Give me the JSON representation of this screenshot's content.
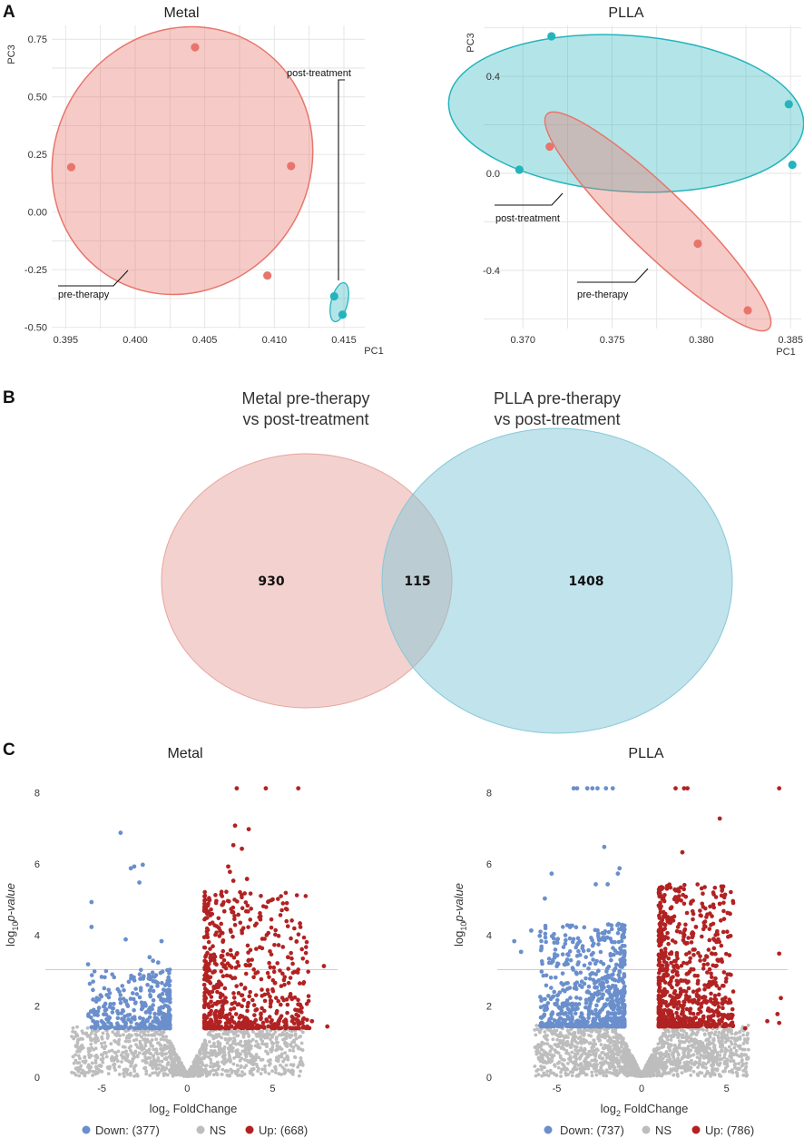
{
  "panels": {
    "A": "A",
    "B": "B",
    "C": "C"
  },
  "colors": {
    "metal_pre": "#e8756c",
    "post": "#24b4bc",
    "venn_left": "#ebb1ac",
    "venn_right": "#9ed4e0",
    "down": "#6a8fcc",
    "ns": "#bdbdbd",
    "up": "#b22222"
  },
  "chart_data": [
    {
      "id": "pca_metal",
      "type": "scatter",
      "title": "Metal",
      "xlabel": "PC1",
      "ylabel": "PC3",
      "xlim": [
        0.394,
        0.4165
      ],
      "ylim": [
        -0.505,
        0.81
      ],
      "xticks": [
        0.395,
        0.4,
        0.405,
        0.41,
        0.415
      ],
      "xtick_labels": [
        "0.395",
        "0.400",
        "0.405",
        "0.410",
        "0.415"
      ],
      "yticks": [
        0.75,
        0.5,
        0.25,
        0.0,
        -0.25,
        -0.5
      ],
      "ytick_labels": [
        "0.75",
        "0.50",
        "0.25",
        "0.00",
        "-0.25",
        "-0.50"
      ],
      "series": [
        {
          "name": "pre-therapy",
          "color_key": "metal_pre",
          "x": [
            0.3954,
            0.4043,
            0.4112,
            0.4095
          ],
          "y": [
            0.195,
            0.715,
            0.2,
            -0.275
          ]
        },
        {
          "name": "post-treatment",
          "color_key": "post",
          "x": [
            0.4143,
            0.4149
          ],
          "y": [
            -0.365,
            -0.445
          ]
        }
      ],
      "annotations": [
        "post-treatment",
        "pre-therapy"
      ]
    },
    {
      "id": "pca_plla",
      "type": "scatter",
      "title": "PLLA",
      "xlabel": "PC1",
      "ylabel": "PC3",
      "xlim": [
        0.3678,
        0.3856
      ],
      "ylim": [
        -0.64,
        0.61
      ],
      "xticks": [
        0.37,
        0.375,
        0.38,
        0.385
      ],
      "xtick_labels": [
        "0.370",
        "0.375",
        "0.380",
        "0.385"
      ],
      "yticks": [
        0.4,
        0.0,
        -0.4
      ],
      "ytick_labels": [
        "0.4",
        "0.0",
        "-0.4"
      ],
      "series": [
        {
          "name": "post-treatment",
          "color_key": "post",
          "x": [
            0.3698,
            0.3716,
            0.3849,
            0.3851
          ],
          "y": [
            0.015,
            0.565,
            0.285,
            0.035
          ]
        },
        {
          "name": "pre-therapy",
          "color_key": "metal_pre",
          "x": [
            0.3715,
            0.3798,
            0.3826
          ],
          "y": [
            0.11,
            -0.29,
            -0.565
          ]
        }
      ],
      "annotations": [
        "post-treatment",
        "pre-therapy"
      ]
    },
    {
      "id": "venn",
      "type": "venn",
      "sets": [
        {
          "label_line1": "Metal pre-therapy",
          "label_line2": "vs post-treatment",
          "only": 930
        },
        {
          "label_line1": "PLLA pre-therapy",
          "label_line2": "vs post-treatment",
          "only": 1408
        }
      ],
      "intersection": 115
    },
    {
      "id": "volcano_metal",
      "type": "scatter",
      "title": "Metal",
      "xlabel_main": "log",
      "xlabel_sub": "2",
      "xlabel_rest": " FoldChange",
      "ylabel_main": "log",
      "ylabel_sub": "10",
      "ylabel_rest": "p-value",
      "xlim": [
        -8.3,
        8.8
      ],
      "ylim": [
        0,
        8.5
      ],
      "xticks": [
        -5,
        0,
        5
      ],
      "yticks": [
        0,
        2,
        4,
        6,
        8
      ],
      "threshold_y": 3.0,
      "counts": {
        "down": 377,
        "up": 668
      },
      "legend": {
        "down": "Down: (377)",
        "ns": "NS",
        "up": "Up: (668)"
      },
      "down_points": [
        [
          -3.9,
          6.85
        ],
        [
          -3.3,
          5.85
        ],
        [
          -3.1,
          5.9
        ],
        [
          -2.6,
          5.95
        ],
        [
          -2.8,
          5.45
        ],
        [
          -5.6,
          4.9
        ],
        [
          -5.6,
          4.2
        ],
        [
          -3.6,
          3.85
        ],
        [
          -1.5,
          3.8
        ],
        [
          -5.8,
          3.15
        ],
        [
          -2.2,
          3.35
        ],
        [
          -2.0,
          3.25
        ],
        [
          -1.7,
          3.2
        ]
      ],
      "up_points": [
        [
          2.9,
          8.1
        ],
        [
          4.6,
          8.1
        ],
        [
          6.5,
          8.1
        ],
        [
          2.8,
          7.05
        ],
        [
          3.6,
          6.95
        ],
        [
          2.7,
          6.5
        ],
        [
          3.2,
          6.4
        ],
        [
          2.4,
          5.9
        ],
        [
          2.5,
          5.75
        ],
        [
          2.7,
          5.5
        ],
        [
          3.5,
          5.55
        ],
        [
          6.6,
          4.3
        ],
        [
          3.2,
          4.1
        ],
        [
          5.9,
          3.35
        ],
        [
          8.0,
          3.1
        ],
        [
          8.2,
          1.4
        ],
        [
          7.3,
          1.55
        ]
      ],
      "down_dense": {
        "x": [
          -5.8,
          -1.0
        ],
        "y": [
          1.35,
          3.0
        ],
        "n": 360
      },
      "up_dense": {
        "x": [
          1.0,
          7.2
        ],
        "y": [
          1.35,
          5.2
        ],
        "n": 650
      },
      "ns_extent": {
        "xmax": 6.8,
        "ymax": 1.4,
        "n": 1400
      }
    },
    {
      "id": "volcano_plla",
      "type": "scatter",
      "title": "PLLA",
      "xlabel_main": "log",
      "xlabel_sub": "2",
      "xlabel_rest": " FoldChange",
      "ylabel_main": "log",
      "ylabel_sub": "10",
      "ylabel_rest": "p-value",
      "xlim": [
        -8.5,
        8.6
      ],
      "ylim": [
        0,
        8.5
      ],
      "xticks": [
        -5,
        0,
        5
      ],
      "yticks": [
        0,
        2,
        4,
        6,
        8
      ],
      "threshold_y": 3.0,
      "counts": {
        "down": 737,
        "up": 786
      },
      "legend": {
        "down": "Down: (737)",
        "ns": "NS",
        "up": "Up: (786)"
      },
      "down_points": [
        [
          -4.0,
          8.1
        ],
        [
          -3.8,
          8.1
        ],
        [
          -3.2,
          8.1
        ],
        [
          -2.9,
          8.1
        ],
        [
          -2.6,
          8.1
        ],
        [
          -2.1,
          8.1
        ],
        [
          -1.7,
          8.1
        ],
        [
          -2.2,
          6.45
        ],
        [
          -1.3,
          5.85
        ],
        [
          -1.4,
          5.7
        ],
        [
          -5.3,
          5.7
        ],
        [
          -2.7,
          5.4
        ],
        [
          -2.0,
          5.4
        ],
        [
          -5.7,
          5.0
        ],
        [
          -6.5,
          4.1
        ],
        [
          -6.0,
          3.95
        ],
        [
          -7.5,
          3.8
        ],
        [
          -7.1,
          3.5
        ]
      ],
      "up_points": [
        [
          2.0,
          8.1
        ],
        [
          2.5,
          8.1
        ],
        [
          2.7,
          8.1
        ],
        [
          8.1,
          8.1
        ],
        [
          4.6,
          7.25
        ],
        [
          2.4,
          6.3
        ],
        [
          1.5,
          5.35
        ],
        [
          2.2,
          5.2
        ],
        [
          2.6,
          5.05
        ],
        [
          4.6,
          4.85
        ],
        [
          3.2,
          4.2
        ],
        [
          8.1,
          3.45
        ],
        [
          8.2,
          2.2
        ],
        [
          8.0,
          1.75
        ],
        [
          8.1,
          1.5
        ],
        [
          6.1,
          1.35
        ],
        [
          7.4,
          1.55
        ]
      ],
      "down_dense": {
        "x": [
          -6.0,
          -1.0
        ],
        "y": [
          1.4,
          4.3
        ],
        "n": 720
      },
      "up_dense": {
        "x": [
          1.0,
          5.4
        ],
        "y": [
          1.4,
          5.4
        ],
        "n": 770
      },
      "ns_extent": {
        "xmax": 6.3,
        "ymax": 1.45,
        "n": 1800
      }
    }
  ]
}
